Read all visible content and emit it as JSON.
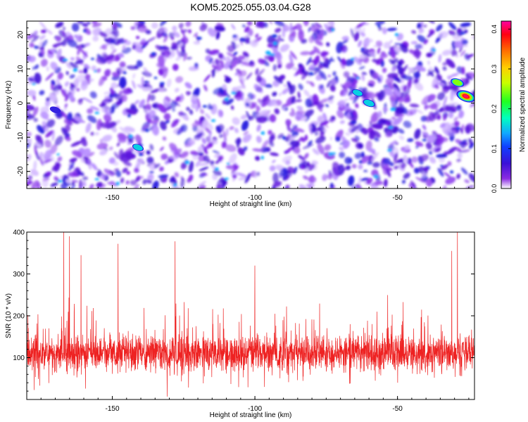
{
  "title": "KOM5.2025.055.03.04.G28",
  "colors": {
    "snr_line": "#ee2222",
    "frame": "#000000",
    "colormap": [
      "#ffffff",
      "#b58cff",
      "#7a1fe8",
      "#3f0fd6",
      "#1b32e6",
      "#11a8ff",
      "#00ff9a",
      "#5cff00",
      "#ffea00",
      "#ff9900",
      "#ff1a00",
      "#ff00aa"
    ]
  },
  "chart_data": [
    {
      "type": "heatmap",
      "xlabel": "Height of straight line (km)",
      "ylabel": "Frequency (Hz)",
      "xlim": [
        -180,
        -23
      ],
      "ylim": [
        -25,
        24
      ],
      "xticks": [
        -150,
        -100,
        -50
      ],
      "yticks": [
        -20,
        -10,
        0,
        10,
        20
      ],
      "colorbar": {
        "label": "Normalized spectral amplitude",
        "range": [
          0,
          0.42
        ],
        "ticks": [
          "0.0",
          "0.1",
          "0.2",
          "0.3",
          "0.4"
        ]
      },
      "hotspots": [
        {
          "x": -26,
          "y": 2,
          "value": 0.4
        },
        {
          "x": -29,
          "y": 6,
          "value": 0.2
        },
        {
          "x": -60,
          "y": 0,
          "value": 0.15
        },
        {
          "x": -64,
          "y": 3,
          "value": 0.12
        },
        {
          "x": -141,
          "y": -13,
          "value": 0.12
        },
        {
          "x": -170,
          "y": -2,
          "value": 0.1
        }
      ]
    },
    {
      "type": "line",
      "xlabel": "Height of straight line (km)",
      "ylabel": "SNR (10 * v/v)",
      "xlim": [
        -180,
        -23
      ],
      "ylim": [
        0,
        400
      ],
      "xticks": [
        -150,
        -100,
        -50
      ],
      "yticks": [
        100,
        200,
        300,
        400
      ],
      "series": [
        {
          "baseline": 110,
          "spread": 60,
          "notable_peaks": [
            {
              "x": -167,
              "y": 400
            },
            {
              "x": -165,
              "y": 390
            },
            {
              "x": -128,
              "y": 378
            },
            {
              "x": -148,
              "y": 372
            },
            {
              "x": -29,
              "y": 400
            },
            {
              "x": -31,
              "y": 355
            },
            {
              "x": -161,
              "y": 345
            },
            {
              "x": -100,
              "y": 320
            }
          ]
        }
      ]
    }
  ]
}
